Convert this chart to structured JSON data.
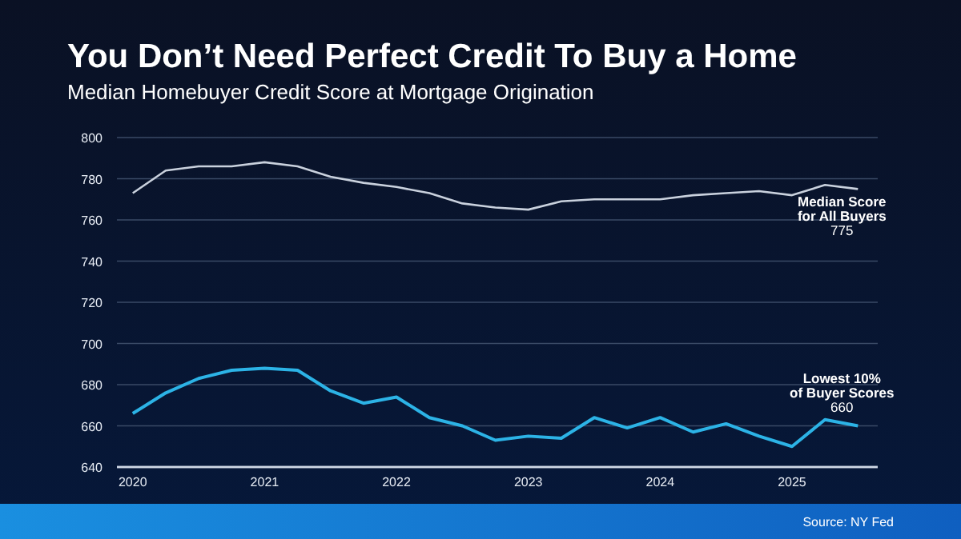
{
  "chart_data": {
    "type": "line",
    "title": "You Don’t Need Perfect Credit To Buy a Home",
    "subtitle": "Median Homebuyer Credit Score at Mortgage Origination",
    "x": [
      2020,
      2020.25,
      2020.5,
      2020.75,
      2021,
      2021.25,
      2021.5,
      2021.75,
      2022,
      2022.25,
      2022.5,
      2022.75,
      2023,
      2023.25,
      2023.5,
      2023.75,
      2024,
      2024.25,
      2024.5,
      2024.75,
      2025,
      2025.25,
      2025.5
    ],
    "series": [
      {
        "name": "Median Score for All Buyers",
        "color": "#c9d1dd",
        "values": [
          773,
          784,
          786,
          786,
          788,
          786,
          781,
          778,
          776,
          773,
          768,
          766,
          765,
          769,
          770,
          770,
          770,
          772,
          773,
          774,
          772,
          777,
          775
        ],
        "value_labels": [
          null,
          null,
          null,
          null,
          null,
          null,
          null,
          null,
          null,
          null,
          null,
          null,
          null,
          null,
          null,
          null,
          null,
          null,
          null,
          null,
          null,
          null,
          "775"
        ]
      },
      {
        "name": "Lowest 10% of Buyer Scores",
        "color": "#2cb3e6",
        "values": [
          666,
          676,
          683,
          687,
          688,
          687,
          677,
          671,
          674,
          664,
          660,
          653,
          655,
          654,
          664,
          659,
          664,
          657,
          661,
          655,
          650,
          663,
          660
        ],
        "value_labels": [
          null,
          null,
          null,
          null,
          null,
          null,
          null,
          null,
          null,
          null,
          null,
          null,
          null,
          null,
          null,
          null,
          null,
          null,
          null,
          null,
          null,
          null,
          "660"
        ]
      }
    ],
    "xlim": [
      2019.88,
      2025.65
    ],
    "xticks": [
      2020,
      2021,
      2022,
      2023,
      2024,
      2025
    ],
    "ylim": [
      640,
      800
    ],
    "yticks": [
      640,
      660,
      680,
      700,
      720,
      740,
      760,
      780,
      800
    ],
    "grid": "y",
    "legend": false,
    "marker": "none",
    "line_style": "solid",
    "annotations": [
      "Source: NY Fed"
    ]
  }
}
